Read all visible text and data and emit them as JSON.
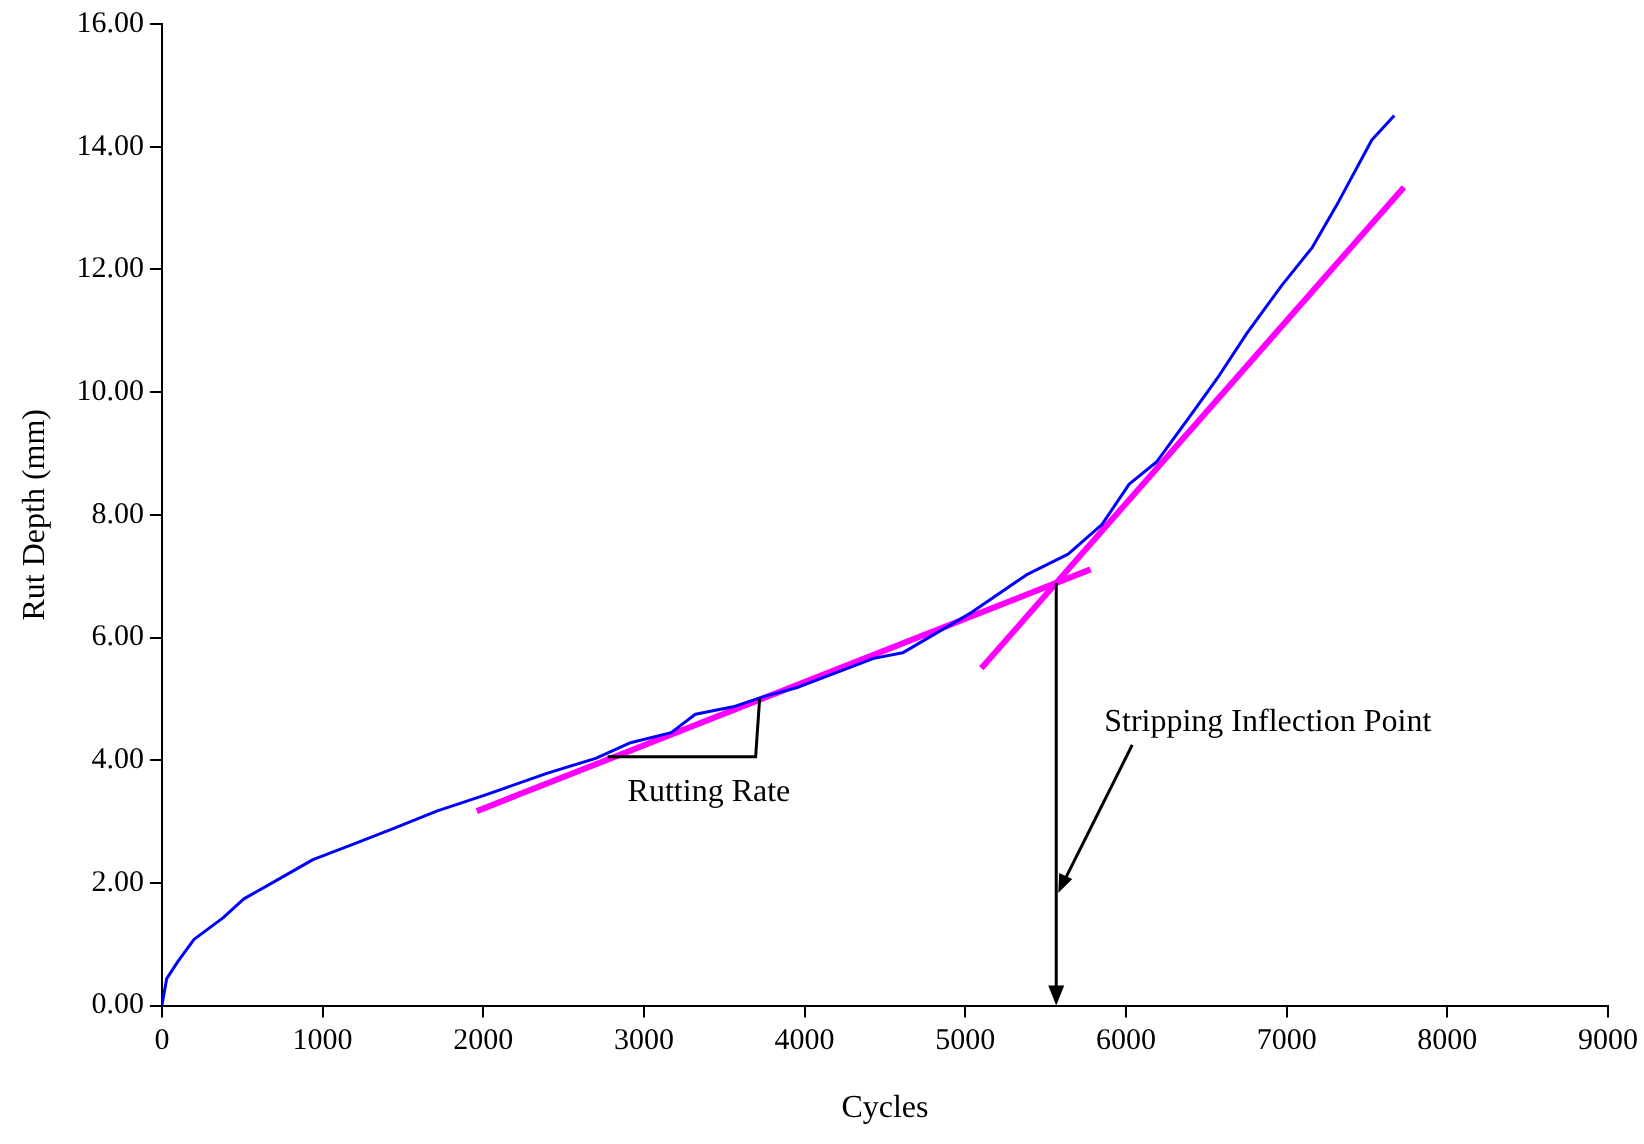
{
  "chart_data": {
    "type": "line",
    "xlabel": "Cycles",
    "ylabel": "Rut Depth (mm)",
    "xlim": [
      0,
      9000
    ],
    "xticks": [
      0,
      1000,
      2000,
      3000,
      4000,
      5000,
      6000,
      7000,
      8000,
      9000
    ],
    "ylim": [
      0,
      16
    ],
    "yticks": [
      {
        "value": 0,
        "label": "0.00"
      },
      {
        "value": 2,
        "label": "2.00"
      },
      {
        "value": 4,
        "label": "4.00"
      },
      {
        "value": 6,
        "label": "6.00"
      },
      {
        "value": 8,
        "label": "8.00"
      },
      {
        "value": 10,
        "label": "10.00"
      },
      {
        "value": 12,
        "label": "12.00"
      },
      {
        "value": 14,
        "label": "14.00"
      },
      {
        "value": 16,
        "label": "16.00"
      }
    ],
    "grid": false,
    "legend": false,
    "marker": "none",
    "line_style": "solid",
    "series": [
      {
        "color": "#0000ff",
        "x": [
          0,
          30,
          100,
          200,
          380,
          510,
          700,
          940,
          1200,
          1455,
          1710,
          2010,
          2400,
          2700,
          2910,
          3170,
          3320,
          3555,
          3750,
          3960,
          4430,
          4610,
          5040,
          5380,
          5640,
          5850,
          6020,
          6190,
          6410,
          6580,
          6750,
          6970,
          7160,
          7310,
          7530,
          7670
        ],
        "values": [
          0,
          0.44,
          0.72,
          1.08,
          1.43,
          1.74,
          2.02,
          2.38,
          2.64,
          2.9,
          3.17,
          3.43,
          3.79,
          4.03,
          4.28,
          4.45,
          4.75,
          4.87,
          5.04,
          5.19,
          5.66,
          5.75,
          6.41,
          7.02,
          7.36,
          7.84,
          8.5,
          8.86,
          9.65,
          10.27,
          10.95,
          11.74,
          12.36,
          13.04,
          14.11,
          14.51
        ]
      },
      {
        "color": "#ff00ff",
        "x": [
          1960,
          5780
        ],
        "values": [
          3.17,
          7.11
        ]
      },
      {
        "color": "#ff00ff",
        "x": [
          5100,
          7730
        ],
        "values": [
          5.5,
          13.34
        ]
      }
    ],
    "annotations": [
      {
        "text": "Rutting Rate",
        "x": 3720,
        "y": 5.0
      },
      "Stripping Inflection Point"
    ]
  }
}
